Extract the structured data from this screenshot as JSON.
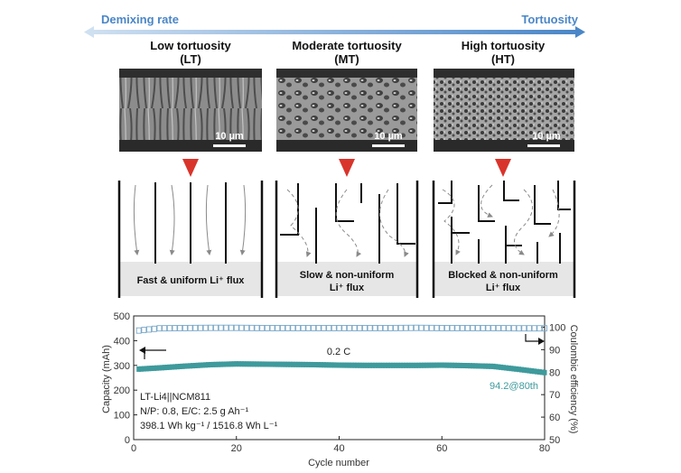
{
  "top_arrow": {
    "left_label": "Demixing rate",
    "right_label": "Tortuosity",
    "color": "#4a86c7"
  },
  "panels": [
    {
      "title": "Low tortuosity",
      "abbr": "(LT)",
      "scale_bar": "10 µm",
      "flux_lines": [
        "Fast & uniform Li⁺ flux"
      ]
    },
    {
      "title": "Moderate tortuosity",
      "abbr": "(MT)",
      "scale_bar": "10 µm",
      "flux_lines": [
        "Slow & non-uniform",
        "Li⁺ flux"
      ]
    },
    {
      "title": "High tortuosity",
      "abbr": "(HT)",
      "scale_bar": "10 µm",
      "flux_lines": [
        "Blocked & non-uniform",
        "Li⁺ flux"
      ]
    }
  ],
  "colors": {
    "down_arrow": "#d9342b",
    "capacity": "#3e9a9c",
    "efficiency": "#7aa8c8"
  },
  "chart_data": {
    "type": "scatter",
    "xlabel": "Cycle number",
    "ylabel_left": "Capacity (mAh)",
    "ylabel_right": "Coulombic efficiency (%)",
    "xlim": [
      0,
      80
    ],
    "ylim_left": [
      0,
      500
    ],
    "ylim_right": [
      50,
      105
    ],
    "x_ticks": [
      "0",
      "20",
      "40",
      "60",
      "80"
    ],
    "y_left_ticks": [
      "0",
      "100",
      "200",
      "300",
      "400",
      "500"
    ],
    "y_right_ticks": [
      "50",
      "60",
      "70",
      "80",
      "90",
      "100"
    ],
    "series": [
      {
        "axis": "left",
        "marker": "filled-square",
        "x": [
          1,
          5,
          10,
          15,
          20,
          25,
          30,
          35,
          40,
          45,
          50,
          55,
          60,
          65,
          70,
          75,
          80
        ],
        "y": [
          285,
          290,
          297,
          303,
          306,
          305,
          304,
          303,
          301,
          300,
          300,
          300,
          301,
          299,
          296,
          284,
          271
        ]
      },
      {
        "axis": "right",
        "marker": "open-square",
        "x": [
          1,
          5,
          10,
          15,
          20,
          25,
          30,
          35,
          40,
          45,
          50,
          55,
          60,
          65,
          70,
          75,
          80
        ],
        "y": [
          98.5,
          99.5,
          99.6,
          99.7,
          99.7,
          99.6,
          99.6,
          99.6,
          99.6,
          99.6,
          99.6,
          99.7,
          99.6,
          99.6,
          99.6,
          99.5,
          99.5
        ]
      }
    ],
    "annotations": {
      "rate": "0.2 C",
      "retention": "94.2@80th",
      "cell": "LT-Li4||NCM811",
      "np_ec": "N/P: 0.8, E/C: 2.5 g Ah⁻¹",
      "energy": "398.1 Wh kg⁻¹ / 1516.8 Wh L⁻¹"
    }
  }
}
